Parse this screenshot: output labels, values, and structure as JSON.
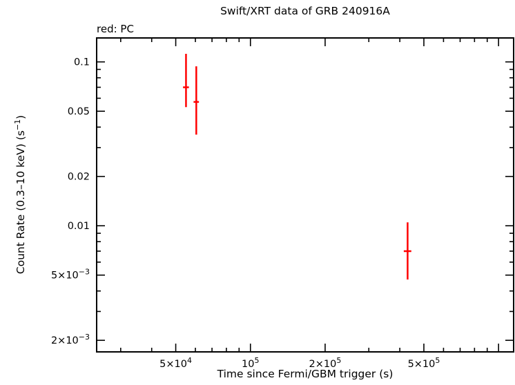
{
  "page": {
    "background": "#ffffff"
  },
  "chart_data": {
    "type": "scatter",
    "title": "Swift/XRT data of GRB 240916A",
    "annotation": "red: PC",
    "xlabel": "Time since Fermi/GBM trigger (s)",
    "ylabel": "Count Rate (0.3–10 keV) (s^−1^)",
    "xscale": "log",
    "yscale": "log",
    "xlim": [
      24000,
      1150000
    ],
    "ylim": [
      0.0017,
      0.14
    ],
    "grid": false,
    "legend_position": "top-left",
    "xticks": [
      {
        "value": 50000,
        "label": "5×10^4^"
      },
      {
        "value": 100000,
        "label": "10^5^"
      },
      {
        "value": 200000,
        "label": "2×10^5^"
      },
      {
        "value": 500000,
        "label": "5×10^5^"
      }
    ],
    "yticks": [
      {
        "value": 0.1,
        "label": "0.1"
      },
      {
        "value": 0.05,
        "label": "0.05"
      },
      {
        "value": 0.02,
        "label": "0.02"
      },
      {
        "value": 0.01,
        "label": "0.01"
      },
      {
        "value": 0.005,
        "label": "5×10^−3^"
      },
      {
        "value": 0.002,
        "label": "2×10^−3^"
      }
    ],
    "series": [
      {
        "name": "PC",
        "color": "#ff0000",
        "marker": "error-bar",
        "points": [
          {
            "x": 55000,
            "x_lo": 53500,
            "x_hi": 56500,
            "y": 0.07,
            "y_lo": 0.053,
            "y_hi": 0.112
          },
          {
            "x": 60500,
            "x_lo": 59000,
            "x_hi": 62000,
            "y": 0.057,
            "y_lo": 0.036,
            "y_hi": 0.094
          },
          {
            "x": 430000,
            "x_lo": 415000,
            "x_hi": 445000,
            "y": 0.007,
            "y_lo": 0.0047,
            "y_hi": 0.0105
          }
        ]
      }
    ]
  }
}
